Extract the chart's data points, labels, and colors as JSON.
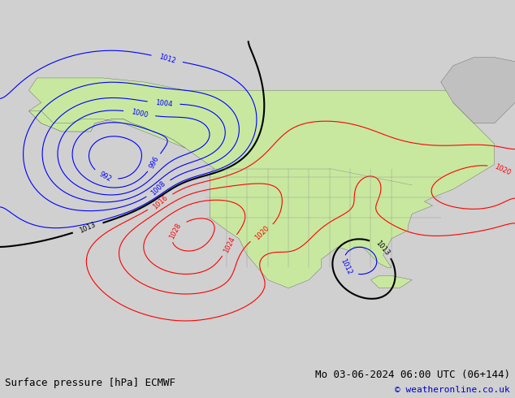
{
  "title_left": "Surface pressure [hPa] ECMWF",
  "title_right": "Mo 03-06-2024 06:00 UTC (06+144)",
  "copyright": "© weatheronline.co.uk",
  "bg_color": "#d8d8d8",
  "land_color": "#c8e8a0",
  "water_color": "#d8d8d8",
  "figsize": [
    6.34,
    4.9
  ],
  "dpi": 100,
  "title_fontsize": 9,
  "copyright_fontsize": 8,
  "label_fontsize_blue": 7,
  "label_fontsize_red": 7,
  "label_fontsize_black": 7
}
